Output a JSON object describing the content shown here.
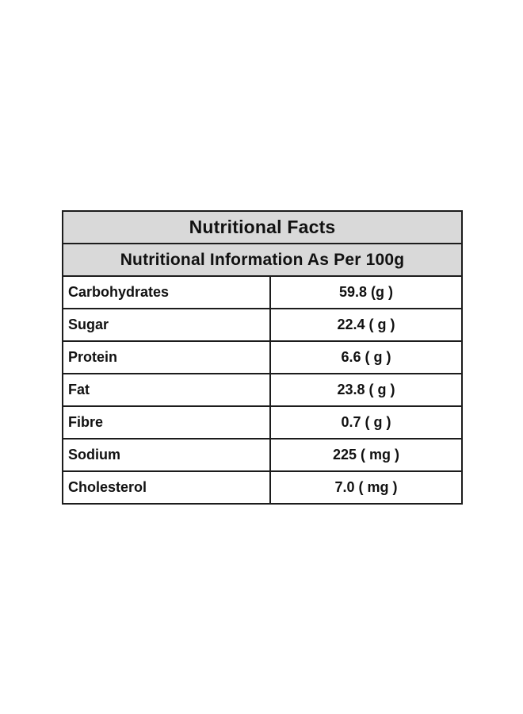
{
  "page": {
    "background_color": "#ffffff"
  },
  "table": {
    "title": "Nutritional Facts",
    "subtitle": "Nutritional Information As Per 100g",
    "colors": {
      "header_bg": "#d9d9d9",
      "border": "#1c1c1c",
      "text": "#111111",
      "row_bg": "#ffffff"
    },
    "rows": [
      {
        "label": "Carbohydrates",
        "value": "59.8 (g )"
      },
      {
        "label": "Sugar",
        "value": "22.4 ( g )"
      },
      {
        "label": "Protein",
        "value": "6.6 ( g )"
      },
      {
        "label": "Fat",
        "value": "23.8 ( g )"
      },
      {
        "label": "Fibre",
        "value": "0.7 ( g )"
      },
      {
        "label": "Sodium",
        "value": "225 ( mg )"
      },
      {
        "label": "Cholesterol",
        "value": "7.0 ( mg )"
      }
    ]
  }
}
